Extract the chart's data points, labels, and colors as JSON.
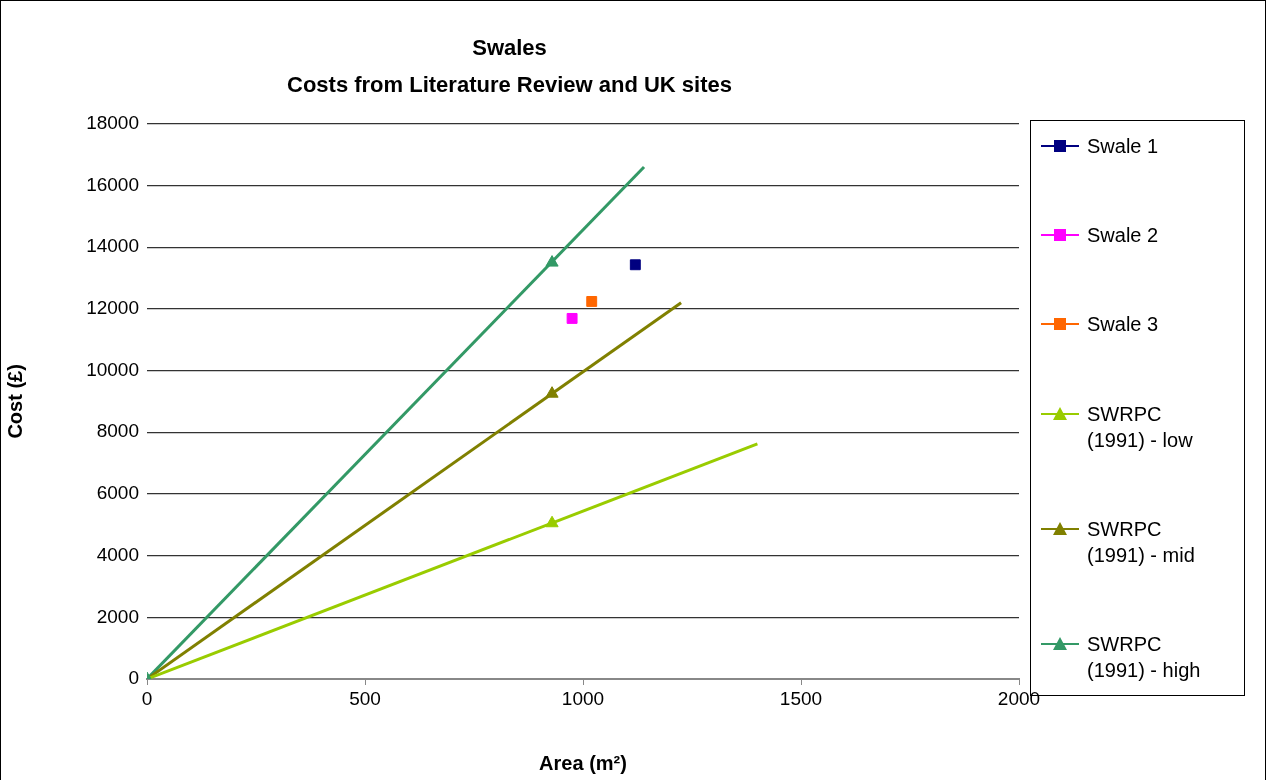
{
  "chart_data": {
    "type": "scatter",
    "title": "Swales",
    "subtitle": "Costs from Literature Review and UK sites",
    "xlabel": "Area (m²)",
    "ylabel": "Cost (£)",
    "xlim": [
      0,
      2000
    ],
    "xticks": [
      0,
      500,
      1000,
      1500,
      2000
    ],
    "ylim": [
      0,
      18000
    ],
    "yticks": [
      0,
      2000,
      4000,
      6000,
      8000,
      10000,
      12000,
      14000,
      16000,
      18000
    ],
    "grid": "y",
    "legend": "right",
    "series": [
      {
        "name": "Swale 1",
        "type": "scatter",
        "marker": "square",
        "color": "#000080",
        "x": [
          1120
        ],
        "values": [
          13430
        ]
      },
      {
        "name": "Swale 2",
        "type": "scatter",
        "marker": "square",
        "color": "#ff00ff",
        "x": [
          975
        ],
        "values": [
          11690
        ]
      },
      {
        "name": "Swale 3",
        "type": "scatter",
        "marker": "square",
        "color": "#ff6600",
        "x": [
          1020
        ],
        "values": [
          12240
        ]
      },
      {
        "name": "SWRPC (1991) - low",
        "type": "scatter",
        "marker": "triangle",
        "color": "#99cc00",
        "x": [
          929
        ],
        "values": [
          5050
        ]
      },
      {
        "name": "SWRPC (1991) - mid",
        "type": "scatter",
        "marker": "triangle",
        "color": "#808000",
        "x": [
          929
        ],
        "values": [
          9250
        ]
      },
      {
        "name": "SWRPC (1991)  - high",
        "type": "scatter",
        "marker": "triangle",
        "color": "#339966",
        "x": [
          0,
          929
        ],
        "values": [
          0,
          13500
        ]
      },
      {
        "type": "line",
        "marker": "none",
        "color": "#99cc00",
        "x": [
          0,
          1400
        ],
        "values": [
          0,
          7620
        ]
      },
      {
        "type": "line",
        "marker": "none",
        "color": "#808000",
        "x": [
          0,
          1225
        ],
        "values": [
          0,
          12200
        ]
      },
      {
        "type": "line",
        "marker": "none",
        "color": "#339966",
        "x": [
          0,
          1140
        ],
        "values": [
          0,
          16600
        ]
      }
    ]
  }
}
